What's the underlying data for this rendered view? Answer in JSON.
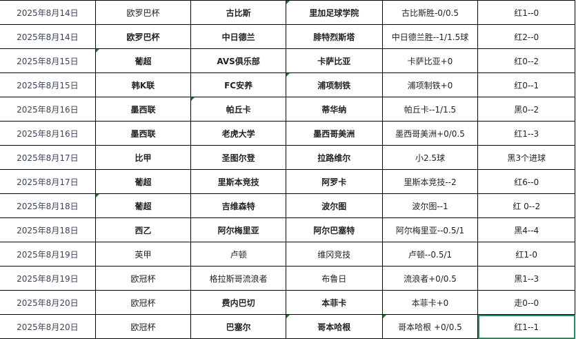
{
  "rows": [
    {
      "date": "2025年8月14日",
      "league": "欧罗巴杯",
      "home": "古比斯",
      "away": "里加足球学院",
      "handicap": "古比斯胜-0/0.5",
      "result": "红1--0",
      "bold": [
        false,
        true,
        true
      ]
    },
    {
      "date": "2025年8月14日",
      "league": "欧罗巴杯",
      "home": "中日德兰",
      "away": "腓特烈斯塔",
      "handicap": "中日德兰胜--1/1.5球",
      "result": "红2--0",
      "bold": [
        true,
        true,
        true
      ]
    },
    {
      "date": "2025年8月15日",
      "league": "葡超",
      "home": "AVS俱乐部",
      "away": "卡萨比亚",
      "handicap": "卡萨比亚+0",
      "result": "红0--2",
      "bold": [
        true,
        true,
        true
      ]
    },
    {
      "date": "2025年8月15日",
      "league": "韩K联",
      "home": "FC安养",
      "away": "浦项制铁",
      "handicap": "浦项制铁+0",
      "result": "红0--1",
      "bold": [
        true,
        true,
        true
      ]
    },
    {
      "date": "2025年8月16日",
      "league": "墨西联",
      "home": "帕丘卡",
      "away": "蒂华纳",
      "handicap": "帕丘卡--1/1.5",
      "result": "黑0--2",
      "bold": [
        true,
        true,
        true
      ]
    },
    {
      "date": "2025年8月16日",
      "league": "墨西联",
      "home": "老虎大学",
      "away": "墨西哥美洲",
      "handicap": "墨西哥美洲+0/0.5",
      "result": "红1--3",
      "bold": [
        true,
        true,
        true
      ]
    },
    {
      "date": "2025年8月17日",
      "league": "比甲",
      "home": "圣图尔登",
      "away": "拉路维尔",
      "handicap": "小2.5球",
      "result": "黑3个进球",
      "bold": [
        true,
        true,
        true
      ]
    },
    {
      "date": "2025年8月17日",
      "league": "葡超",
      "home": "里斯本竞技",
      "away": "阿罗卡",
      "handicap": "里斯本竞技--2",
      "result": "红6--0",
      "bold": [
        true,
        true,
        true
      ]
    },
    {
      "date": "2025年8月18日",
      "league": "葡超",
      "home": "吉维森特",
      "away": "波尔图",
      "handicap": "波尔图--1",
      "result": "红 0--2",
      "bold": [
        true,
        true,
        true
      ]
    },
    {
      "date": "2025年8月18日",
      "league": "西乙",
      "home": "阿尔梅里亚",
      "away": "阿尔巴塞特",
      "handicap": "阿尔梅里亚--0.5/1",
      "result": "黑4--4",
      "bold": [
        true,
        true,
        true
      ]
    },
    {
      "date": "2025年8月19日",
      "league": "英甲",
      "home": "卢顿",
      "away": "维冈竞技",
      "handicap": "卢顿--0.5/1",
      "result": "红1-0",
      "bold": [
        false,
        false,
        false
      ]
    },
    {
      "date": "2025年8月19日",
      "league": "欧冠杯",
      "home": "格拉斯哥流浪者",
      "away": "布鲁日",
      "handicap": "流浪者+0/0.5",
      "result": "黑1--3",
      "bold": [
        false,
        false,
        false
      ]
    },
    {
      "date": "2025年8月20日",
      "league": "欧冠杯",
      "home": "费内巴切",
      "away": "本菲卡",
      "handicap": "本菲卡+0",
      "result": "走0--0",
      "bold": [
        false,
        true,
        true
      ]
    },
    {
      "date": "2025年8月20日",
      "league": "欧冠杯",
      "home": "巴塞尔",
      "away": "哥本哈根",
      "handicap": "哥本哈根  +0/0.5",
      "result": "红1--1",
      "bold": [
        false,
        true,
        true
      ]
    }
  ],
  "selected_cell": {
    "row": 14,
    "column": 6
  },
  "colors": {
    "selection": "#1e8f5e",
    "comment_marker": "#1a7f1a"
  }
}
